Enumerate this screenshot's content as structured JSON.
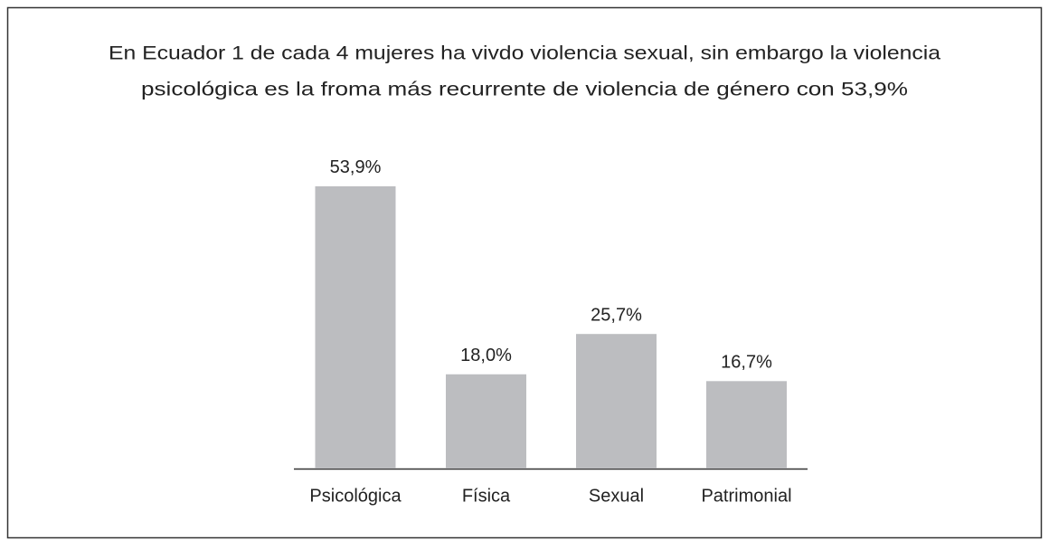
{
  "chart_data": {
    "type": "bar",
    "title": [
      "En Ecuador 1 de cada 4 mujeres ha vivdo violencia sexual, sin embargo la violencia",
      "psicológica es la froma más recurrente de violencia de género con 53,9%"
    ],
    "categories": [
      "Psicológica",
      "Física",
      "Sexual",
      "Patrimonial"
    ],
    "values": [
      53.9,
      18.0,
      25.7,
      16.7
    ],
    "value_labels": [
      "53,9%",
      "18,0%",
      "25,7%",
      "16,7%"
    ],
    "color": "#bcbdc0"
  }
}
